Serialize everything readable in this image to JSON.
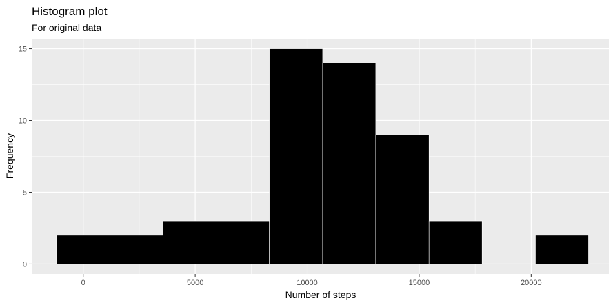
{
  "chart_data": {
    "type": "bar",
    "title": "Histogram plot",
    "subtitle": "For original data",
    "xlabel": "Number of steps",
    "ylabel": "Frequency",
    "xlim": [
      -2300,
      23500
    ],
    "ylim": [
      -0.7,
      15.7
    ],
    "x_ticks": [
      0,
      5000,
      10000,
      15000,
      20000
    ],
    "x_tick_labels": [
      "0",
      "5000",
      "10000",
      "15000",
      "20000"
    ],
    "y_ticks": [
      0,
      5,
      10,
      15
    ],
    "y_tick_labels": [
      "0",
      "5",
      "10",
      "15"
    ],
    "bins": [
      {
        "start": -1190,
        "end": 1190,
        "count": 2
      },
      {
        "start": 1190,
        "end": 3560,
        "count": 2
      },
      {
        "start": 3560,
        "end": 5940,
        "count": 3
      },
      {
        "start": 5940,
        "end": 8310,
        "count": 3
      },
      {
        "start": 8310,
        "end": 10690,
        "count": 15
      },
      {
        "start": 10690,
        "end": 13060,
        "count": 14
      },
      {
        "start": 13060,
        "end": 15440,
        "count": 9
      },
      {
        "start": 15440,
        "end": 17810,
        "count": 3
      },
      {
        "start": 17810,
        "end": 20190,
        "count": 0
      },
      {
        "start": 20190,
        "end": 22560,
        "count": 2
      }
    ],
    "bar_fill": "#000000",
    "bar_outline": "#ffffff",
    "panel_background": "#ebebeb",
    "grid_color": "#ffffff",
    "grid": true,
    "legend": "none"
  }
}
